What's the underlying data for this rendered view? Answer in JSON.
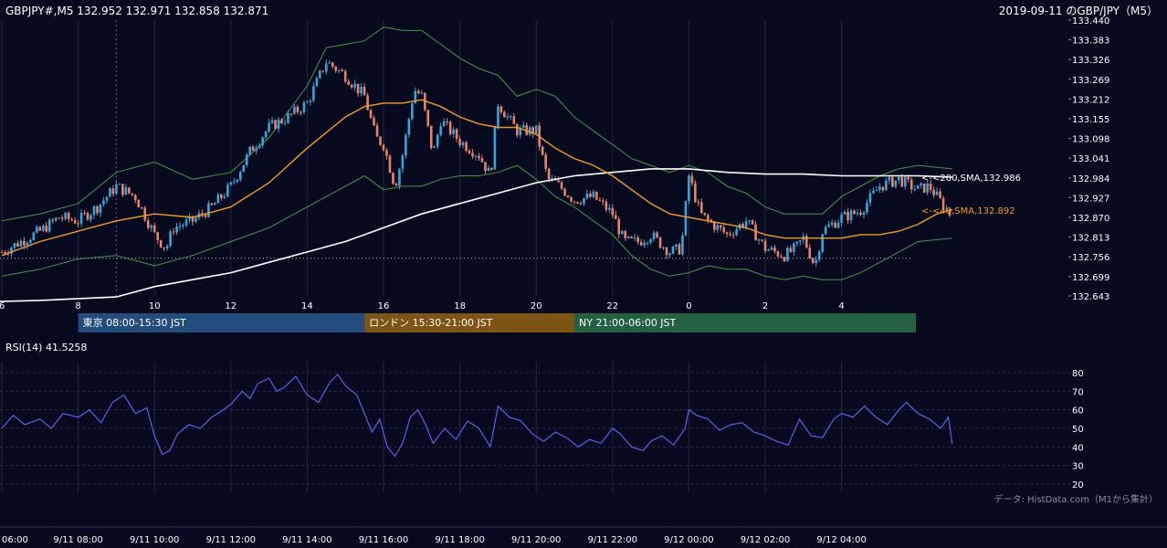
{
  "header": {
    "left": "GBPJPY#,M5 132.952 132.971 132.858 132.871",
    "right": "2019-09-11 のGBP/JPY（M5）"
  },
  "colors": {
    "background": "#070a1e",
    "candle_up": "#3aa3d8",
    "candle_down": "#e9826c",
    "bollinger": "#3f9a4a",
    "sma40": "#f39a2b",
    "sma200": "#ffffff",
    "rsi": "#5a62e8",
    "tokyo": "#234d7c",
    "london": "#7d5414",
    "ny": "#246142"
  },
  "chart_data": [
    {
      "type": "candlestick",
      "ylim": [
        132.643,
        133.44
      ],
      "y_ticks": [
        "133.440",
        "133.383",
        "133.326",
        "133.269",
        "133.212",
        "133.155",
        "133.098",
        "133.041",
        "132.984",
        "132.927",
        "132.870",
        "132.813",
        "132.756",
        "132.699",
        "132.643"
      ],
      "x_tick_labels": [
        "6",
        "8",
        "10",
        "12",
        "14",
        "16",
        "18",
        "20",
        "22",
        "0",
        "2",
        "4"
      ],
      "x_tick_hours": [
        6,
        8,
        10,
        12,
        14,
        16,
        18,
        20,
        22,
        24,
        26,
        28
      ],
      "x_range_hours": [
        6,
        30
      ],
      "sma200_label": "<-<200,SMA,132.986",
      "sma40_label": "<-<40,SMA,132.892",
      "sma200_last": 132.986,
      "sma40_last": 132.892,
      "dotted_level": 132.752,
      "close_path": [
        [
          6.0,
          132.77
        ],
        [
          6.5,
          132.8
        ],
        [
          7.0,
          132.83
        ],
        [
          7.5,
          132.87
        ],
        [
          8.0,
          132.86
        ],
        [
          8.5,
          132.9
        ],
        [
          9.0,
          132.96
        ],
        [
          9.5,
          132.93
        ],
        [
          10.0,
          132.82
        ],
        [
          10.3,
          132.78
        ],
        [
          10.5,
          132.84
        ],
        [
          11.0,
          132.86
        ],
        [
          11.5,
          132.9
        ],
        [
          12.0,
          132.96
        ],
        [
          12.5,
          133.06
        ],
        [
          13.0,
          133.13
        ],
        [
          13.5,
          133.16
        ],
        [
          14.0,
          133.2
        ],
        [
          14.5,
          133.32
        ],
        [
          15.0,
          133.28
        ],
        [
          15.5,
          133.22
        ],
        [
          15.8,
          133.1
        ],
        [
          16.0,
          133.08
        ],
        [
          16.3,
          132.96
        ],
        [
          16.5,
          133.05
        ],
        [
          16.8,
          133.24
        ],
        [
          17.0,
          133.22
        ],
        [
          17.3,
          133.05
        ],
        [
          17.5,
          133.15
        ],
        [
          18.0,
          133.09
        ],
        [
          18.5,
          133.05
        ],
        [
          18.8,
          132.99
        ],
        [
          19.0,
          133.2
        ],
        [
          19.5,
          133.12
        ],
        [
          20.0,
          133.12
        ],
        [
          20.3,
          132.98
        ],
        [
          20.5,
          132.97
        ],
        [
          21.0,
          132.92
        ],
        [
          21.5,
          132.93
        ],
        [
          22.0,
          132.88
        ],
        [
          22.3,
          132.8
        ],
        [
          22.7,
          132.8
        ],
        [
          23.0,
          132.82
        ],
        [
          23.5,
          132.77
        ],
        [
          23.8,
          132.78
        ],
        [
          24.0,
          132.99
        ],
        [
          24.3,
          132.88
        ],
        [
          24.5,
          132.86
        ],
        [
          25.0,
          132.82
        ],
        [
          25.5,
          132.86
        ],
        [
          26.0,
          132.78
        ],
        [
          26.5,
          132.76
        ],
        [
          26.8,
          132.78
        ],
        [
          27.0,
          132.81
        ],
        [
          27.3,
          132.73
        ],
        [
          27.5,
          132.83
        ],
        [
          28.0,
          132.87
        ],
        [
          28.3,
          132.88
        ],
        [
          28.5,
          132.89
        ],
        [
          29.0,
          132.96
        ],
        [
          29.5,
          132.98
        ],
        [
          30.0,
          132.95
        ],
        [
          30.3,
          132.96
        ],
        [
          30.5,
          132.93
        ],
        [
          30.9,
          132.87
        ]
      ],
      "sma40_path": [
        [
          6.0,
          132.76
        ],
        [
          7.0,
          132.8
        ],
        [
          8.0,
          132.83
        ],
        [
          9.0,
          132.86
        ],
        [
          10.0,
          132.88
        ],
        [
          11.0,
          132.87
        ],
        [
          12.0,
          132.9
        ],
        [
          13.0,
          132.97
        ],
        [
          14.0,
          133.07
        ],
        [
          15.0,
          133.16
        ],
        [
          15.5,
          133.19
        ],
        [
          16.0,
          133.2
        ],
        [
          16.5,
          133.2
        ],
        [
          17.0,
          133.21
        ],
        [
          17.5,
          133.19
        ],
        [
          18.0,
          133.16
        ],
        [
          18.5,
          133.14
        ],
        [
          19.0,
          133.13
        ],
        [
          19.5,
          133.13
        ],
        [
          20.0,
          133.11
        ],
        [
          20.5,
          133.07
        ],
        [
          21.0,
          133.04
        ],
        [
          21.5,
          133.02
        ],
        [
          22.0,
          132.99
        ],
        [
          22.5,
          132.95
        ],
        [
          23.0,
          132.91
        ],
        [
          23.5,
          132.88
        ],
        [
          24.0,
          132.87
        ],
        [
          24.5,
          132.86
        ],
        [
          25.0,
          132.85
        ],
        [
          25.5,
          132.84
        ],
        [
          26.0,
          132.82
        ],
        [
          26.5,
          132.81
        ],
        [
          27.0,
          132.81
        ],
        [
          27.5,
          132.81
        ],
        [
          28.0,
          132.81
        ],
        [
          28.5,
          132.82
        ],
        [
          29.0,
          132.82
        ],
        [
          29.5,
          132.83
        ],
        [
          30.0,
          132.85
        ],
        [
          30.5,
          132.88
        ],
        [
          30.9,
          132.892
        ]
      ],
      "sma200_path": [
        [
          3.6,
          132.62
        ],
        [
          7.0,
          132.63
        ],
        [
          9.0,
          132.64
        ],
        [
          10.0,
          132.67
        ],
        [
          11.0,
          132.69
        ],
        [
          12.0,
          132.71
        ],
        [
          13.0,
          132.74
        ],
        [
          14.0,
          132.77
        ],
        [
          15.0,
          132.8
        ],
        [
          16.0,
          132.84
        ],
        [
          17.0,
          132.88
        ],
        [
          18.0,
          132.91
        ],
        [
          19.0,
          132.94
        ],
        [
          20.0,
          132.97
        ],
        [
          21.0,
          132.99
        ],
        [
          22.0,
          133.0
        ],
        [
          23.0,
          133.01
        ],
        [
          24.0,
          133.01
        ],
        [
          25.0,
          133.0
        ],
        [
          26.0,
          132.995
        ],
        [
          27.0,
          132.995
        ],
        [
          28.0,
          132.99
        ],
        [
          29.0,
          132.99
        ],
        [
          30.0,
          132.99
        ],
        [
          30.9,
          132.986
        ]
      ],
      "bb_upper_path": [
        [
          6.0,
          132.86
        ],
        [
          7.0,
          132.88
        ],
        [
          8.0,
          132.91
        ],
        [
          9.0,
          133.0
        ],
        [
          10.0,
          133.03
        ],
        [
          11.0,
          132.98
        ],
        [
          12.0,
          133.0
        ],
        [
          13.0,
          133.1
        ],
        [
          14.0,
          133.25
        ],
        [
          14.5,
          133.36
        ],
        [
          15.0,
          133.37
        ],
        [
          15.5,
          133.38
        ],
        [
          16.0,
          133.42
        ],
        [
          16.5,
          133.41
        ],
        [
          17.0,
          133.41
        ],
        [
          17.5,
          133.37
        ],
        [
          18.0,
          133.33
        ],
        [
          18.5,
          133.3
        ],
        [
          19.0,
          133.28
        ],
        [
          19.5,
          133.22
        ],
        [
          20.0,
          133.24
        ],
        [
          20.5,
          133.22
        ],
        [
          21.0,
          133.16
        ],
        [
          21.5,
          133.12
        ],
        [
          22.0,
          133.08
        ],
        [
          22.5,
          133.04
        ],
        [
          23.0,
          133.02
        ],
        [
          23.5,
          133.0
        ],
        [
          24.0,
          133.02
        ],
        [
          24.5,
          133.0
        ],
        [
          25.0,
          132.96
        ],
        [
          25.5,
          132.94
        ],
        [
          26.0,
          132.9
        ],
        [
          26.5,
          132.88
        ],
        [
          27.0,
          132.88
        ],
        [
          27.5,
          132.88
        ],
        [
          28.0,
          132.93
        ],
        [
          28.5,
          132.96
        ],
        [
          29.0,
          132.99
        ],
        [
          29.5,
          133.01
        ],
        [
          30.0,
          133.02
        ],
        [
          30.9,
          133.01
        ]
      ],
      "bb_lower_path": [
        [
          6.0,
          132.7
        ],
        [
          7.0,
          132.72
        ],
        [
          8.0,
          132.75
        ],
        [
          9.0,
          132.76
        ],
        [
          10.0,
          132.73
        ],
        [
          11.0,
          132.76
        ],
        [
          12.0,
          132.8
        ],
        [
          13.0,
          132.84
        ],
        [
          14.0,
          132.9
        ],
        [
          15.0,
          132.96
        ],
        [
          15.5,
          132.99
        ],
        [
          16.0,
          132.95
        ],
        [
          16.5,
          132.96
        ],
        [
          17.0,
          132.96
        ],
        [
          17.5,
          132.98
        ],
        [
          18.0,
          132.99
        ],
        [
          18.5,
          132.99
        ],
        [
          19.0,
          133.0
        ],
        [
          19.5,
          133.02
        ],
        [
          20.0,
          132.98
        ],
        [
          20.5,
          132.93
        ],
        [
          21.0,
          132.9
        ],
        [
          21.5,
          132.86
        ],
        [
          22.0,
          132.82
        ],
        [
          22.5,
          132.76
        ],
        [
          23.0,
          132.72
        ],
        [
          23.5,
          132.7
        ],
        [
          24.0,
          132.71
        ],
        [
          24.5,
          132.73
        ],
        [
          25.0,
          132.72
        ],
        [
          25.5,
          132.72
        ],
        [
          26.0,
          132.7
        ],
        [
          26.5,
          132.69
        ],
        [
          27.0,
          132.7
        ],
        [
          27.5,
          132.69
        ],
        [
          28.0,
          132.69
        ],
        [
          28.5,
          132.71
        ],
        [
          29.0,
          132.74
        ],
        [
          29.5,
          132.77
        ],
        [
          30.0,
          132.8
        ],
        [
          30.9,
          132.81
        ]
      ]
    },
    {
      "type": "line",
      "title": "RSI(14) 41.5258",
      "ylim": [
        20,
        80
      ],
      "y_ticks": [
        "80",
        "70",
        "60",
        "50",
        "40",
        "30",
        "20"
      ],
      "x_tick_labels": [
        "06:00",
        "9/11 08:00",
        "9/11 10:00",
        "9/11 12:00",
        "9/11 14:00",
        "9/11 16:00",
        "9/11 18:00",
        "9/11 20:00",
        "9/11 22:00",
        "9/12 00:00",
        "9/12 02:00",
        "9/12 04:00"
      ],
      "x_tick_hours": [
        6,
        8,
        10,
        12,
        14,
        16,
        18,
        20,
        22,
        24,
        26,
        28
      ],
      "x_range_hours": [
        6,
        30
      ],
      "rsi_path": [
        [
          6.0,
          50
        ],
        [
          6.3,
          57
        ],
        [
          6.6,
          52
        ],
        [
          7.0,
          55
        ],
        [
          7.3,
          50
        ],
        [
          7.6,
          58
        ],
        [
          8.0,
          56
        ],
        [
          8.3,
          60
        ],
        [
          8.6,
          53
        ],
        [
          8.9,
          64
        ],
        [
          9.2,
          68
        ],
        [
          9.5,
          58
        ],
        [
          9.8,
          61
        ],
        [
          10.0,
          46
        ],
        [
          10.2,
          36
        ],
        [
          10.4,
          38
        ],
        [
          10.6,
          47
        ],
        [
          10.9,
          52
        ],
        [
          11.2,
          50
        ],
        [
          11.5,
          56
        ],
        [
          11.8,
          60
        ],
        [
          12.0,
          63
        ],
        [
          12.3,
          70
        ],
        [
          12.5,
          66
        ],
        [
          12.7,
          74
        ],
        [
          13.0,
          77
        ],
        [
          13.2,
          70
        ],
        [
          13.4,
          72
        ],
        [
          13.7,
          78
        ],
        [
          14.0,
          68
        ],
        [
          14.3,
          64
        ],
        [
          14.6,
          75
        ],
        [
          14.8,
          79
        ],
        [
          15.0,
          73
        ],
        [
          15.3,
          68
        ],
        [
          15.5,
          58
        ],
        [
          15.7,
          48
        ],
        [
          15.9,
          55
        ],
        [
          16.1,
          40
        ],
        [
          16.3,
          35
        ],
        [
          16.5,
          42
        ],
        [
          16.7,
          56
        ],
        [
          16.9,
          60
        ],
        [
          17.1,
          52
        ],
        [
          17.3,
          42
        ],
        [
          17.6,
          50
        ],
        [
          17.9,
          44
        ],
        [
          18.2,
          54
        ],
        [
          18.5,
          50
        ],
        [
          18.8,
          40
        ],
        [
          19.0,
          62
        ],
        [
          19.3,
          56
        ],
        [
          19.6,
          54
        ],
        [
          19.9,
          47
        ],
        [
          20.2,
          43
        ],
        [
          20.5,
          48
        ],
        [
          20.8,
          45
        ],
        [
          21.1,
          40
        ],
        [
          21.4,
          44
        ],
        [
          21.7,
          42
        ],
        [
          22.0,
          50
        ],
        [
          22.2,
          47
        ],
        [
          22.5,
          40
        ],
        [
          22.8,
          38
        ],
        [
          23.0,
          43
        ],
        [
          23.3,
          46
        ],
        [
          23.6,
          41
        ],
        [
          23.9,
          50
        ],
        [
          24.0,
          60
        ],
        [
          24.2,
          57
        ],
        [
          24.5,
          55
        ],
        [
          24.8,
          49
        ],
        [
          25.1,
          52
        ],
        [
          25.4,
          53
        ],
        [
          25.7,
          48
        ],
        [
          26.0,
          46
        ],
        [
          26.3,
          43
        ],
        [
          26.6,
          41
        ],
        [
          26.9,
          55
        ],
        [
          27.2,
          46
        ],
        [
          27.5,
          45
        ],
        [
          27.8,
          55
        ],
        [
          28.0,
          58
        ],
        [
          28.3,
          56
        ],
        [
          28.6,
          62
        ],
        [
          28.9,
          56
        ],
        [
          29.2,
          52
        ],
        [
          29.5,
          60
        ],
        [
          29.7,
          64
        ],
        [
          30.0,
          58
        ],
        [
          30.3,
          55
        ],
        [
          30.6,
          50
        ],
        [
          30.8,
          56
        ],
        [
          30.9,
          41.5
        ]
      ]
    }
  ],
  "sessions": [
    {
      "label": "東京 08:00-15:30 JST",
      "start_hour": 8.0,
      "end_hour": 15.5
    },
    {
      "label": "ロンドン 15:30-21:00 JST",
      "start_hour": 15.5,
      "end_hour": 21.0
    },
    {
      "label": "NY 21:00-06:00 JST",
      "start_hour": 21.0,
      "end_hour": 30.0
    }
  ],
  "footer": {
    "credit": "データ: HistData.com（M1から集計）"
  }
}
